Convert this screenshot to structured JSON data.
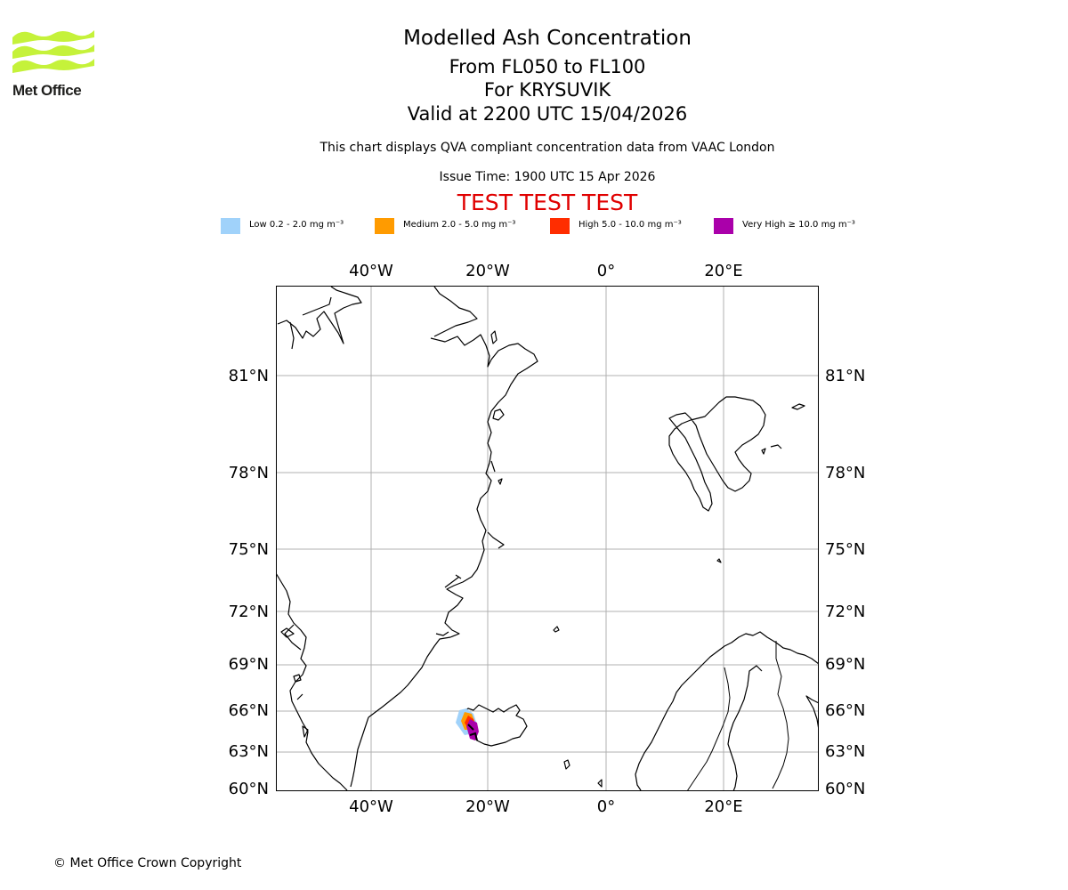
{
  "logo": {
    "text": "Met Office",
    "icon": "met-office-wave-icon",
    "color": "#c5f23a"
  },
  "title": {
    "main": "Modelled Ash Concentration",
    "levels": "From FL050 to FL100",
    "volcano": "For KRYSUVIK",
    "valid": "Valid at 2200 UTC 15/04/2026"
  },
  "subtitle": "This chart displays QVA compliant concentration data from VAAC London",
  "issue_time": "Issue Time: 1900 UTC 15 Apr 2026",
  "test_banner": {
    "text": "TEST TEST TEST",
    "color": "#e00000"
  },
  "legend": [
    {
      "label": "Low 0.2 - 2.0 mg m⁻³",
      "color": "#a0d2fa"
    },
    {
      "label": "Medium 2.0 - 5.0 mg m⁻³",
      "color": "#ff9b00"
    },
    {
      "label": "High 5.0 - 10.0 mg m⁻³",
      "color": "#ff2d00"
    },
    {
      "label": "Very High ≥ 10.0 mg m⁻³",
      "color": "#aa00aa"
    }
  ],
  "map": {
    "longitude_labels": [
      "40°W",
      "20°W",
      "0°",
      "20°E"
    ],
    "latitude_labels": [
      "81°N",
      "78°N",
      "75°N",
      "72°N",
      "69°N",
      "66°N",
      "63°N",
      "60°N"
    ],
    "regions": [
      "greenland",
      "iceland",
      "svalbard",
      "scandinavia",
      "faroe-islands",
      "jan-mayen"
    ],
    "ash_plume": {
      "source": "KRYSUVIK",
      "levels_present": [
        "Low",
        "Medium",
        "High",
        "Very High"
      ]
    }
  },
  "footer": "© Met Office Crown Copyright"
}
